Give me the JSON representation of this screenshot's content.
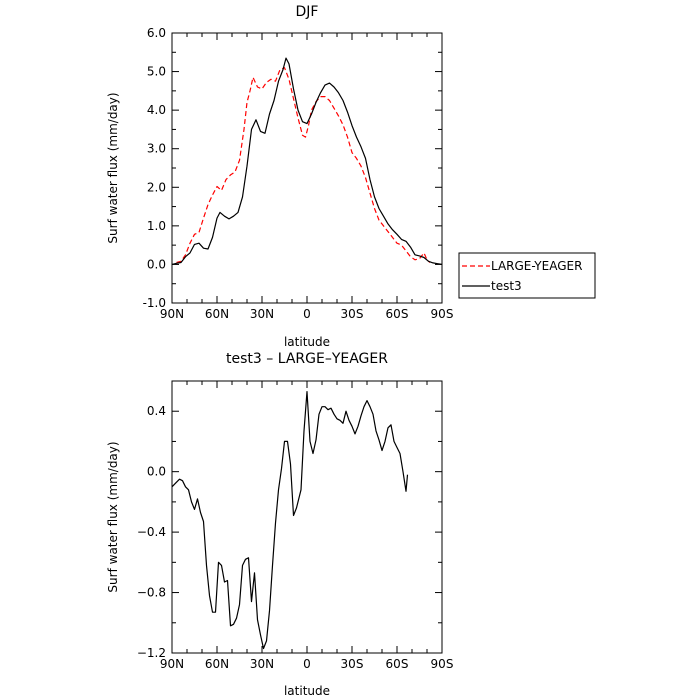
{
  "chart_data": [
    {
      "type": "line",
      "title": "DJF",
      "xlabel": "latitude",
      "ylabel": "Surf water flux (mm/day)",
      "xlim": [
        90,
        -90
      ],
      "ylim": [
        -1.0,
        6.0
      ],
      "x_ticks": [
        90,
        60,
        30,
        0,
        -30,
        -60,
        -90
      ],
      "x_tick_labels": [
        "90N",
        "60N",
        "30N",
        "0",
        "30S",
        "60S",
        "90S"
      ],
      "y_ticks": [
        -1.0,
        0.0,
        1.0,
        2.0,
        3.0,
        4.0,
        5.0,
        6.0
      ],
      "y_tick_labels": [
        "-1.0",
        "0.0",
        "1.0",
        "2.0",
        "3.0",
        "4.0",
        "5.0",
        "6.0"
      ],
      "grid": false,
      "legend_position": "right",
      "series": [
        {
          "name": "LARGE-YEAGER",
          "color": "#ff0000",
          "dash": true,
          "points": [
            [
              87,
              0.05
            ],
            [
              84,
              0.08
            ],
            [
              81,
              0.25
            ],
            [
              78,
              0.55
            ],
            [
              75,
              0.78
            ],
            [
              72,
              0.83
            ],
            [
              69,
              1.2
            ],
            [
              66,
              1.55
            ],
            [
              63,
              1.8
            ],
            [
              60,
              2.02
            ],
            [
              57,
              1.92
            ],
            [
              54,
              2.2
            ],
            [
              51,
              2.32
            ],
            [
              48,
              2.4
            ],
            [
              45,
              2.7
            ],
            [
              42,
              3.5
            ],
            [
              40,
              4.2
            ],
            [
              38,
              4.5
            ],
            [
              36,
              4.85
            ],
            [
              33,
              4.6
            ],
            [
              30,
              4.55
            ],
            [
              27,
              4.72
            ],
            [
              24,
              4.8
            ],
            [
              21,
              4.75
            ],
            [
              18,
              5.05
            ],
            [
              15,
              5.1
            ],
            [
              12,
              4.8
            ],
            [
              9,
              4.3
            ],
            [
              6,
              3.8
            ],
            [
              3,
              3.35
            ],
            [
              1,
              3.3
            ],
            [
              -1,
              3.6
            ],
            [
              -3,
              4.0
            ],
            [
              -6,
              4.22
            ],
            [
              -9,
              4.35
            ],
            [
              -12,
              4.35
            ],
            [
              -15,
              4.25
            ],
            [
              -18,
              4.05
            ],
            [
              -21,
              3.85
            ],
            [
              -24,
              3.62
            ],
            [
              -27,
              3.3
            ],
            [
              -30,
              2.9
            ],
            [
              -33,
              2.75
            ],
            [
              -36,
              2.55
            ],
            [
              -39,
              2.25
            ],
            [
              -42,
              1.85
            ],
            [
              -45,
              1.45
            ],
            [
              -48,
              1.15
            ],
            [
              -51,
              1.0
            ],
            [
              -54,
              0.85
            ],
            [
              -57,
              0.7
            ],
            [
              -60,
              0.55
            ],
            [
              -63,
              0.5
            ],
            [
              -66,
              0.35
            ],
            [
              -69,
              0.2
            ],
            [
              -72,
              0.12
            ],
            [
              -75,
              0.15
            ],
            [
              -78,
              0.3
            ],
            [
              -80,
              0.12
            ],
            [
              -82,
              0.05
            ]
          ]
        },
        {
          "name": "test3",
          "color": "#000000",
          "dash": false,
          "points": [
            [
              90,
              0.0
            ],
            [
              87,
              0.03
            ],
            [
              84,
              0.05
            ],
            [
              81,
              0.2
            ],
            [
              78,
              0.3
            ],
            [
              75,
              0.52
            ],
            [
              72,
              0.55
            ],
            [
              69,
              0.42
            ],
            [
              66,
              0.4
            ],
            [
              63,
              0.7
            ],
            [
              60,
              1.2
            ],
            [
              58,
              1.35
            ],
            [
              55,
              1.25
            ],
            [
              52,
              1.18
            ],
            [
              49,
              1.25
            ],
            [
              46,
              1.35
            ],
            [
              43,
              1.75
            ],
            [
              40,
              2.55
            ],
            [
              37,
              3.5
            ],
            [
              34,
              3.75
            ],
            [
              31,
              3.45
            ],
            [
              28,
              3.4
            ],
            [
              25,
              3.9
            ],
            [
              22,
              4.25
            ],
            [
              19,
              4.75
            ],
            [
              16,
              5.05
            ],
            [
              14,
              5.35
            ],
            [
              12,
              5.2
            ],
            [
              9,
              4.55
            ],
            [
              6,
              4.0
            ],
            [
              3,
              3.7
            ],
            [
              0,
              3.65
            ],
            [
              -3,
              3.9
            ],
            [
              -6,
              4.2
            ],
            [
              -9,
              4.45
            ],
            [
              -12,
              4.65
            ],
            [
              -15,
              4.7
            ],
            [
              -18,
              4.6
            ],
            [
              -21,
              4.45
            ],
            [
              -24,
              4.25
            ],
            [
              -27,
              3.95
            ],
            [
              -30,
              3.6
            ],
            [
              -33,
              3.3
            ],
            [
              -36,
              3.05
            ],
            [
              -39,
              2.75
            ],
            [
              -42,
              2.2
            ],
            [
              -45,
              1.75
            ],
            [
              -48,
              1.45
            ],
            [
              -51,
              1.25
            ],
            [
              -54,
              1.05
            ],
            [
              -57,
              0.9
            ],
            [
              -60,
              0.78
            ],
            [
              -63,
              0.65
            ],
            [
              -66,
              0.6
            ],
            [
              -69,
              0.45
            ],
            [
              -72,
              0.25
            ],
            [
              -75,
              0.22
            ],
            [
              -78,
              0.18
            ],
            [
              -81,
              0.08
            ],
            [
              -84,
              0.04
            ],
            [
              -87,
              0.02
            ],
            [
              -90,
              0.0
            ]
          ]
        }
      ]
    },
    {
      "type": "line",
      "title": "test3 – LARGE–YEAGER",
      "xlabel": "latitude",
      "ylabel": "Surf water flux (mm/day)",
      "xlim": [
        90,
        -90
      ],
      "ylim": [
        -1.2,
        0.6
      ],
      "x_ticks": [
        90,
        60,
        30,
        0,
        -30,
        -60,
        -90
      ],
      "x_tick_labels": [
        "90N",
        "60N",
        "30N",
        "0",
        "30S",
        "60S",
        "90S"
      ],
      "y_ticks": [
        -1.2,
        -0.8,
        -0.4,
        0.0,
        0.4
      ],
      "y_tick_labels": [
        "−1.2",
        "−0.8",
        "−0.4",
        "0.0",
        "0.4"
      ],
      "grid": false,
      "series": [
        {
          "color": "#000000",
          "dash": false,
          "points": [
            [
              90,
              -0.1
            ],
            [
              87,
              -0.07
            ],
            [
              85,
              -0.05
            ],
            [
              83,
              -0.06
            ],
            [
              81,
              -0.1
            ],
            [
              79,
              -0.12
            ],
            [
              77,
              -0.2
            ],
            [
              75,
              -0.25
            ],
            [
              73,
              -0.18
            ],
            [
              71,
              -0.27
            ],
            [
              69,
              -0.33
            ],
            [
              67,
              -0.62
            ],
            [
              65,
              -0.82
            ],
            [
              63,
              -0.93
            ],
            [
              61,
              -0.93
            ],
            [
              59,
              -0.6
            ],
            [
              57,
              -0.62
            ],
            [
              55,
              -0.73
            ],
            [
              53,
              -0.72
            ],
            [
              51,
              -1.02
            ],
            [
              49,
              -1.01
            ],
            [
              47,
              -0.97
            ],
            [
              45,
              -0.88
            ],
            [
              43,
              -0.62
            ],
            [
              41,
              -0.58
            ],
            [
              39,
              -0.57
            ],
            [
              37,
              -0.86
            ],
            [
              35,
              -0.67
            ],
            [
              33,
              -0.98
            ],
            [
              31,
              -1.08
            ],
            [
              29,
              -1.17
            ],
            [
              27,
              -1.12
            ],
            [
              25,
              -0.92
            ],
            [
              23,
              -0.62
            ],
            [
              21,
              -0.34
            ],
            [
              19,
              -0.12
            ],
            [
              17,
              0.02
            ],
            [
              15,
              0.2
            ],
            [
              13,
              0.2
            ],
            [
              11,
              0.05
            ],
            [
              9,
              -0.29
            ],
            [
              7,
              -0.24
            ],
            [
              4,
              -0.12
            ],
            [
              2,
              0.27
            ],
            [
              0,
              0.53
            ],
            [
              -2,
              0.2
            ],
            [
              -4,
              0.12
            ],
            [
              -6,
              0.21
            ],
            [
              -8,
              0.38
            ],
            [
              -10,
              0.43
            ],
            [
              -12,
              0.43
            ],
            [
              -14,
              0.41
            ],
            [
              -16,
              0.42
            ],
            [
              -18,
              0.38
            ],
            [
              -20,
              0.35
            ],
            [
              -22,
              0.34
            ],
            [
              -24,
              0.32
            ],
            [
              -26,
              0.4
            ],
            [
              -28,
              0.34
            ],
            [
              -30,
              0.3
            ],
            [
              -32,
              0.25
            ],
            [
              -34,
              0.3
            ],
            [
              -36,
              0.37
            ],
            [
              -38,
              0.43
            ],
            [
              -40,
              0.47
            ],
            [
              -42,
              0.43
            ],
            [
              -44,
              0.38
            ],
            [
              -46,
              0.27
            ],
            [
              -48,
              0.21
            ],
            [
              -50,
              0.14
            ],
            [
              -52,
              0.2
            ],
            [
              -54,
              0.29
            ],
            [
              -56,
              0.31
            ],
            [
              -58,
              0.2
            ],
            [
              -60,
              0.16
            ],
            [
              -62,
              0.12
            ],
            [
              -64,
              0.0
            ],
            [
              -66,
              -0.13
            ],
            [
              -67,
              -0.02
            ]
          ]
        }
      ]
    }
  ]
}
